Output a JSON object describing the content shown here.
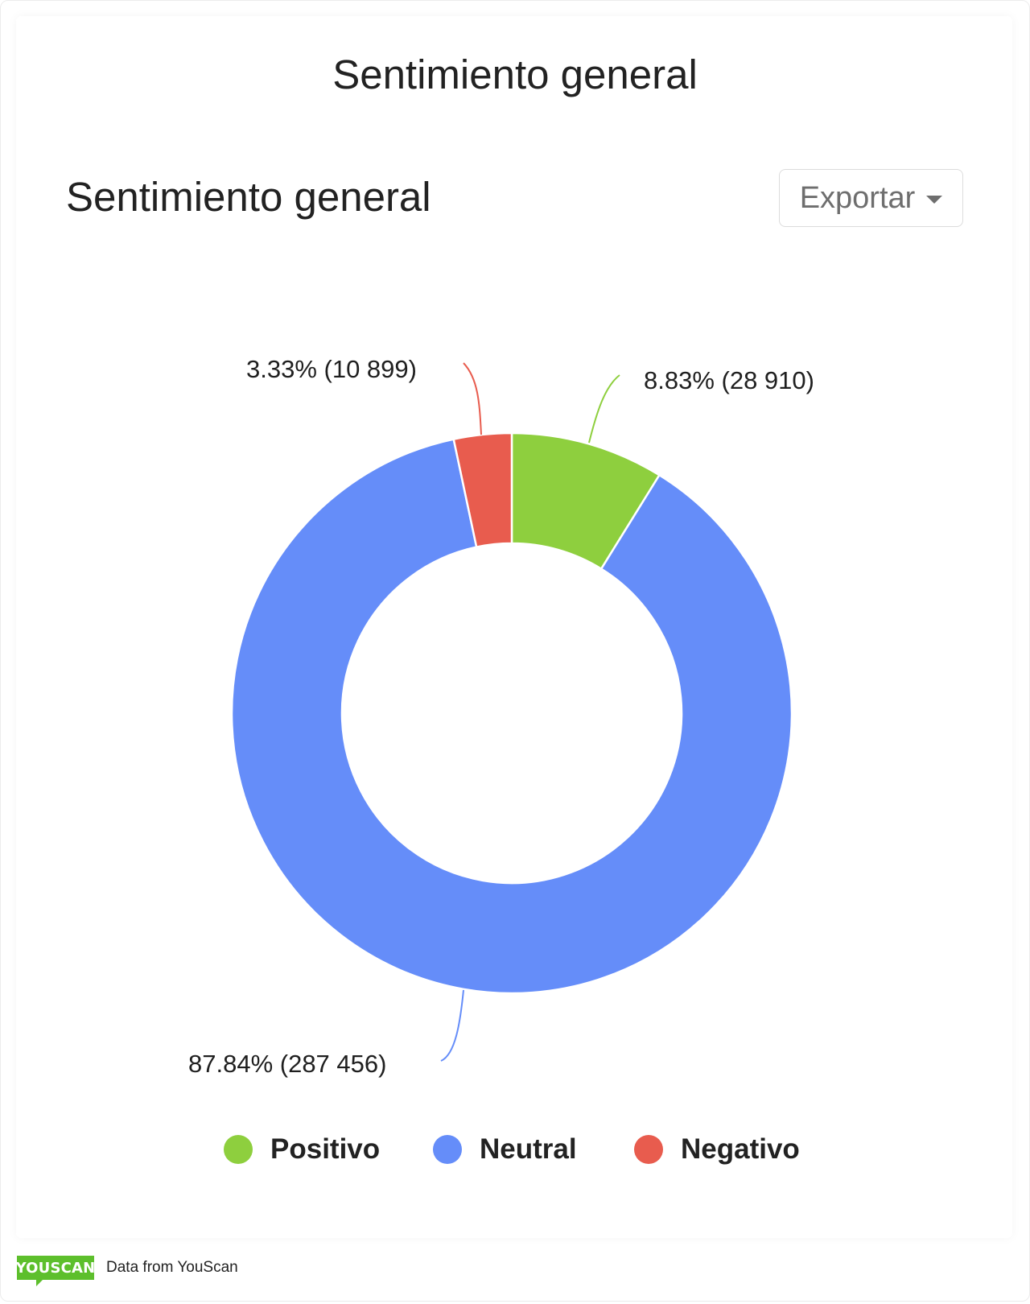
{
  "page": {
    "title": "Sentimiento general"
  },
  "widget": {
    "title": "Sentimiento general",
    "export_label": "Exportar",
    "export_icon": "caret-down-icon"
  },
  "labels": {
    "negativo": "3.33% (10 899)",
    "positivo": "8.83% (28 910)",
    "neutral": "87.84% (287 456)"
  },
  "legend": [
    {
      "label": "Positivo",
      "color": "#8ECF3E"
    },
    {
      "label": "Neutral",
      "color": "#658DF9"
    },
    {
      "label": "Negativo",
      "color": "#E85C4E"
    }
  ],
  "footer": {
    "logo_text": "YOUSCAN",
    "credit": "Data from YouScan"
  },
  "chart_data": {
    "type": "pie",
    "variant": "donut",
    "title": "Sentimiento general",
    "categories": [
      "Positivo",
      "Neutral",
      "Negativo"
    ],
    "values": [
      28910,
      287456,
      10899
    ],
    "percentages": [
      8.83,
      87.84,
      3.33
    ],
    "colors": [
      "#8ECF3E",
      "#658DF9",
      "#E85C4E"
    ],
    "data_labels": [
      "8.83% (28 910)",
      "87.84% (287 456)",
      "3.33% (10 899)"
    ],
    "start_angle": 0,
    "direction": "clockwise",
    "legend_position": "bottom"
  }
}
